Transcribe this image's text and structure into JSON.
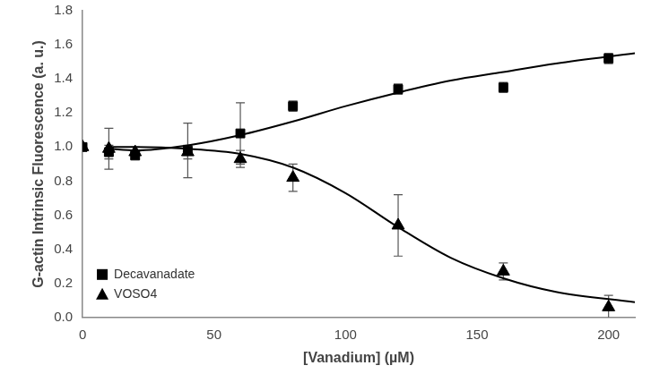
{
  "chart_data": {
    "type": "scatter",
    "x_label": "[Vanadium] (µM)",
    "y_label": "G-actin Intrinsic Fluorescence (a. u.)",
    "xlim": [
      0,
      210
    ],
    "xticks": [
      0,
      50,
      100,
      150,
      200
    ],
    "ylim": [
      0,
      1.8
    ],
    "yticks": [
      {
        "value": 0,
        "label": "0.0"
      },
      0.2,
      0.4,
      0.6,
      0.8,
      {
        "value": 1,
        "label": "1.0"
      },
      1.2,
      1.4,
      1.6,
      1.8
    ],
    "grid": false,
    "legend": "lower left",
    "series": [
      {
        "name": "Decavanadate",
        "color": "#000000",
        "marker": "square",
        "x": [
          0,
          10,
          20,
          40,
          60,
          80,
          120,
          160,
          200
        ],
        "values": [
          1.0,
          0.97,
          0.95,
          0.98,
          1.08,
          1.24,
          1.34,
          1.35,
          1.52
        ],
        "errors": [
          0,
          0.04,
          0.02,
          0.16,
          0.18,
          0.03,
          0.03,
          0.03,
          0.03
        ],
        "fit": {
          "x": [
            10,
            20,
            40,
            60,
            80,
            100,
            120,
            140,
            160,
            180,
            210
          ],
          "values": [
            0.99,
            0.98,
            1.01,
            1.07,
            1.15,
            1.24,
            1.32,
            1.39,
            1.44,
            1.49,
            1.55
          ]
        }
      },
      {
        "name": "VOSO4",
        "color": "#000000",
        "marker": "triangle",
        "x": [
          0,
          10,
          20,
          40,
          60,
          80,
          120,
          160,
          200
        ],
        "values": [
          1.0,
          0.99,
          0.97,
          0.97,
          0.93,
          0.82,
          0.54,
          0.27,
          0.06
        ],
        "errors": [
          0,
          0.12,
          0.03,
          0.04,
          0.05,
          0.08,
          0.18,
          0.05,
          0.07
        ],
        "fit": {
          "x": [
            10,
            20,
            40,
            60,
            80,
            100,
            120,
            140,
            160,
            180,
            210
          ],
          "values": [
            1.0,
            1.0,
            0.99,
            0.96,
            0.88,
            0.73,
            0.53,
            0.35,
            0.23,
            0.15,
            0.09
          ]
        }
      }
    ]
  }
}
